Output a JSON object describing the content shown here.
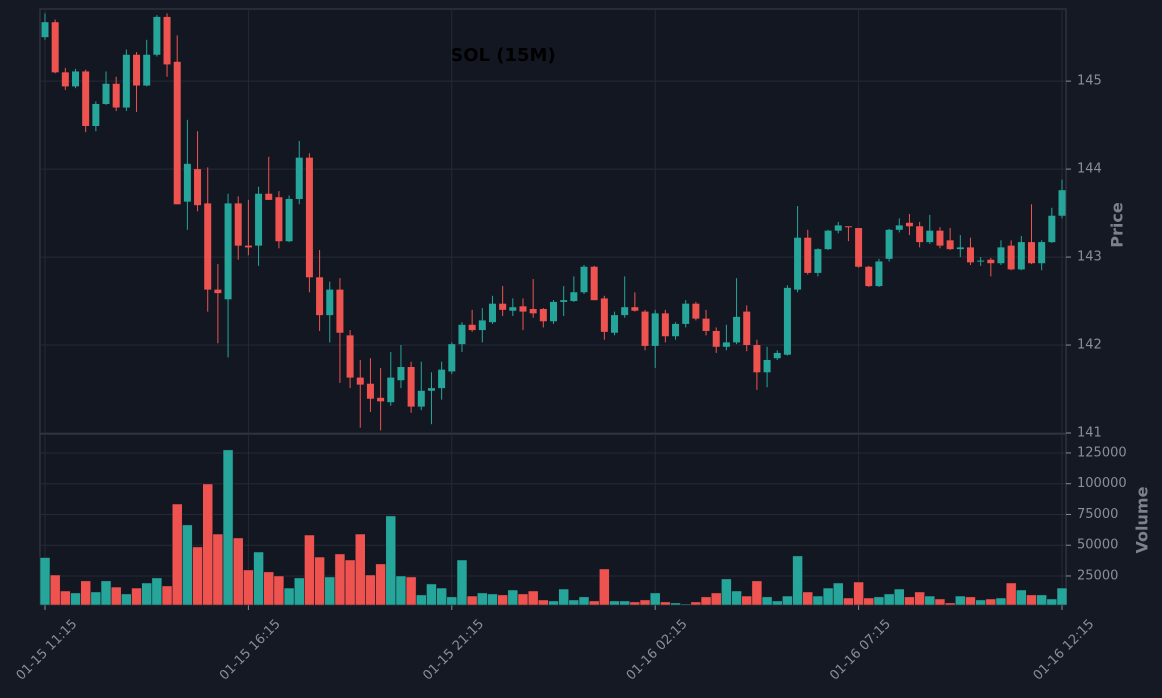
{
  "chart_data": {
    "type": "candlestick",
    "title": "SOL (15M)",
    "categories": [
      "01-15 11:15",
      null,
      null,
      null,
      null,
      null,
      null,
      null,
      null,
      null,
      null,
      null,
      null,
      null,
      null,
      null,
      null,
      null,
      null,
      null,
      "01-15 16:15",
      null,
      null,
      null,
      null,
      null,
      null,
      null,
      null,
      null,
      null,
      null,
      null,
      null,
      null,
      null,
      null,
      null,
      null,
      null,
      "01-15 21:15",
      null,
      null,
      null,
      null,
      null,
      null,
      null,
      null,
      null,
      null,
      null,
      null,
      null,
      null,
      null,
      null,
      null,
      null,
      null,
      "01-16 02:15",
      null,
      null,
      null,
      null,
      null,
      null,
      null,
      null,
      null,
      null,
      null,
      null,
      null,
      null,
      null,
      null,
      null,
      null,
      null,
      "01-16 07:15",
      null,
      null,
      null,
      null,
      null,
      null,
      null,
      null,
      null,
      null,
      null,
      null,
      null,
      null,
      null,
      null,
      null,
      null,
      null,
      "01-16 12:15"
    ],
    "open": [
      145.5,
      145.67,
      145.1,
      144.94,
      145.11,
      144.49,
      144.74,
      144.97,
      144.7,
      145.3,
      144.95,
      145.3,
      145.73,
      145.22,
      143.63,
      144.0,
      143.61,
      142.63,
      142.52,
      143.61,
      143.13,
      143.13,
      143.72,
      143.68,
      143.18,
      143.66,
      144.13,
      142.77,
      142.34,
      142.63,
      142.11,
      141.63,
      141.56,
      141.4,
      141.35,
      141.6,
      141.75,
      141.3,
      141.48,
      141.51,
      141.7,
      142.01,
      142.23,
      142.17,
      142.26,
      142.47,
      142.39,
      142.44,
      142.41,
      142.41,
      142.27,
      142.49,
      142.5,
      142.6,
      142.89,
      142.53,
      142.14,
      142.34,
      142.43,
      142.38,
      141.99,
      142.36,
      142.1,
      142.24,
      142.47,
      142.3,
      142.16,
      141.98,
      142.03,
      142.38,
      142.0,
      141.69,
      141.85,
      141.89,
      142.63,
      143.22,
      142.82,
      143.09,
      143.3,
      143.35,
      143.33,
      142.89,
      142.67,
      142.98,
      143.31,
      143.39,
      143.35,
      143.17,
      143.3,
      143.19,
      143.09,
      143.11,
      142.95,
      142.97,
      142.93,
      143.13,
      142.86,
      143.17,
      142.93,
      143.17,
      143.47
    ],
    "high": [
      145.77,
      145.7,
      145.15,
      145.14,
      145.13,
      144.77,
      145.11,
      145.05,
      145.36,
      145.33,
      145.47,
      145.75,
      145.77,
      145.52,
      144.56,
      144.43,
      144.02,
      142.92,
      143.72,
      143.69,
      143.65,
      143.8,
      144.14,
      143.75,
      143.7,
      144.32,
      144.18,
      143.08,
      142.72,
      142.76,
      142.17,
      141.83,
      141.85,
      141.74,
      141.92,
      142.0,
      141.81,
      141.81,
      141.69,
      141.81,
      142.03,
      142.26,
      142.4,
      142.42,
      142.56,
      142.67,
      142.53,
      142.53,
      142.75,
      142.42,
      142.51,
      142.67,
      142.78,
      142.91,
      142.9,
      142.56,
      142.38,
      142.78,
      142.6,
      142.4,
      142.4,
      142.4,
      142.26,
      142.51,
      142.49,
      142.4,
      142.2,
      142.23,
      142.76,
      142.45,
      142.06,
      141.98,
      141.94,
      142.68,
      143.58,
      143.31,
      143.1,
      143.31,
      143.4,
      143.35,
      143.33,
      142.9,
      142.98,
      143.32,
      143.44,
      143.49,
      143.4,
      143.48,
      143.34,
      143.33,
      143.25,
      143.22,
      143.0,
      142.99,
      143.19,
      143.19,
      143.24,
      143.6,
      143.19,
      143.56,
      143.88
    ],
    "low": [
      145.47,
      145.09,
      144.9,
      144.92,
      144.42,
      144.43,
      144.73,
      144.66,
      144.66,
      144.65,
      144.94,
      145.28,
      145.05,
      143.6,
      143.31,
      143.52,
      142.38,
      142.02,
      141.86,
      142.97,
      143.02,
      142.9,
      143.65,
      143.1,
      143.17,
      143.6,
      142.6,
      142.16,
      142.03,
      141.57,
      141.51,
      141.06,
      141.24,
      141.03,
      141.31,
      141.51,
      141.23,
      141.26,
      141.1,
      141.38,
      141.67,
      141.92,
      142.15,
      142.03,
      142.24,
      142.33,
      142.33,
      142.17,
      142.31,
      142.2,
      142.24,
      142.33,
      142.49,
      142.58,
      142.51,
      142.06,
      142.11,
      142.31,
      142.38,
      141.94,
      141.74,
      142.03,
      142.06,
      142.2,
      142.28,
      142.11,
      141.91,
      141.94,
      142.01,
      141.93,
      141.49,
      141.52,
      141.83,
      141.88,
      142.6,
      142.8,
      142.78,
      143.08,
      143.27,
      143.18,
      142.88,
      142.66,
      142.66,
      142.95,
      143.28,
      143.25,
      143.11,
      143.15,
      143.1,
      143.08,
      143.0,
      142.91,
      142.9,
      142.78,
      142.91,
      142.85,
      142.85,
      142.92,
      142.85,
      143.16,
      143.44
    ],
    "close": [
      145.67,
      145.1,
      144.94,
      145.11,
      144.49,
      144.74,
      144.97,
      144.7,
      145.3,
      144.95,
      145.3,
      145.73,
      145.19,
      143.6,
      144.06,
      143.59,
      142.63,
      142.59,
      143.61,
      143.13,
      143.11,
      143.72,
      143.65,
      143.18,
      143.66,
      144.13,
      142.77,
      142.34,
      142.63,
      142.14,
      141.63,
      141.55,
      141.39,
      141.36,
      141.63,
      141.75,
      141.3,
      141.48,
      141.51,
      141.72,
      142.01,
      142.23,
      142.17,
      142.28,
      142.47,
      142.4,
      142.43,
      142.38,
      142.36,
      142.27,
      142.49,
      142.51,
      142.6,
      142.89,
      142.51,
      142.15,
      142.34,
      142.43,
      142.39,
      141.99,
      142.36,
      142.1,
      142.24,
      142.47,
      142.3,
      142.16,
      141.98,
      142.03,
      142.32,
      142.0,
      141.69,
      141.83,
      141.91,
      142.65,
      143.22,
      142.82,
      143.09,
      143.3,
      143.36,
      143.34,
      142.89,
      142.67,
      142.95,
      143.31,
      143.36,
      143.35,
      143.17,
      143.3,
      143.13,
      143.09,
      143.11,
      142.94,
      142.96,
      142.93,
      143.11,
      142.86,
      143.17,
      142.93,
      143.17,
      143.47,
      143.76
    ],
    "up_color": "#26a69a",
    "down_color": "#ef5350",
    "ylabel": "Price",
    "ylim": [
      141.0,
      145.82
    ],
    "yticks": [
      141,
      142,
      143,
      144,
      145
    ],
    "grid": true,
    "volume": {
      "label": "Volume",
      "ylim": [
        1400,
        140400
      ],
      "yticks": [
        25000,
        50000,
        75000,
        100000,
        125000
      ],
      "values": [
        40000,
        25800,
        12800,
        11200,
        21000,
        12000,
        21000,
        16000,
        10400,
        15200,
        19300,
        23400,
        16900,
        83500,
        66500,
        48600,
        99800,
        59100,
        127500,
        55900,
        29900,
        44500,
        28300,
        25000,
        15200,
        23400,
        58300,
        40400,
        24200,
        42900,
        38000,
        59100,
        25800,
        34800,
        73800,
        25000,
        24200,
        9600,
        18500,
        15200,
        8000,
        38000,
        8700,
        11200,
        10400,
        9600,
        13600,
        10400,
        12800,
        5500,
        4700,
        14400,
        5500,
        8000,
        4700,
        30700,
        4700,
        4700,
        3900,
        5500,
        11200,
        3900,
        3100,
        2200,
        3900,
        8000,
        11200,
        22600,
        12800,
        8700,
        21000,
        8000,
        4700,
        8700,
        41300,
        12000,
        8700,
        15200,
        19300,
        7100,
        20100,
        7100,
        8000,
        10400,
        14400,
        8000,
        12000,
        8700,
        6300,
        3100,
        8700,
        8000,
        5500,
        6300,
        7100,
        19300,
        13600,
        9600,
        9600,
        6300,
        15200
      ]
    }
  }
}
